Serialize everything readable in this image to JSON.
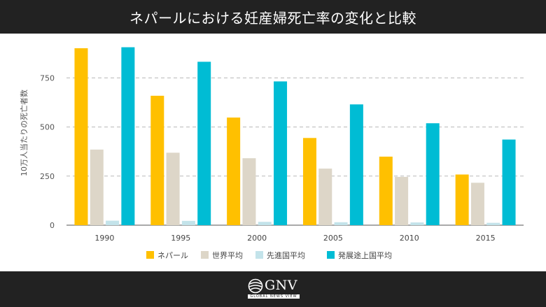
{
  "header": {
    "title": "ネパールにおける妊産婦死亡率の変化と比較"
  },
  "footer": {
    "logo_text": "GNV",
    "logo_sub": "GLOBAL NEWS VIEW"
  },
  "colors": {
    "nepal": "#ffc000",
    "world": "#ddd6c8",
    "developed": "#c3e3ea",
    "developing": "#00bcd4",
    "header_bg": "#222222"
  },
  "chart_data": {
    "type": "bar",
    "title": "",
    "xlabel": "",
    "ylabel": "10万人当たりの死亡者数",
    "ylim": [
      0,
      940
    ],
    "yticks": [
      0,
      250,
      500,
      750
    ],
    "grid": true,
    "legend_position": "bottom",
    "categories": [
      "1990",
      "1995",
      "2000",
      "2005",
      "2010",
      "2015"
    ],
    "series": [
      {
        "name": "ネパール",
        "color": "#ffc000",
        "values": [
          901,
          659,
          548,
          444,
          349,
          258
        ]
      },
      {
        "name": "世界平均",
        "color": "#ddd6c8",
        "values": [
          385,
          369,
          341,
          288,
          246,
          216
        ]
      },
      {
        "name": "先進国平均",
        "color": "#c3e3ea",
        "values": [
          23,
          22,
          17,
          15,
          14,
          12
        ]
      },
      {
        "name": "発展途上国平均",
        "color": "#00bcd4",
        "values": [
          906,
          832,
          732,
          615,
          519,
          436
        ]
      }
    ]
  }
}
